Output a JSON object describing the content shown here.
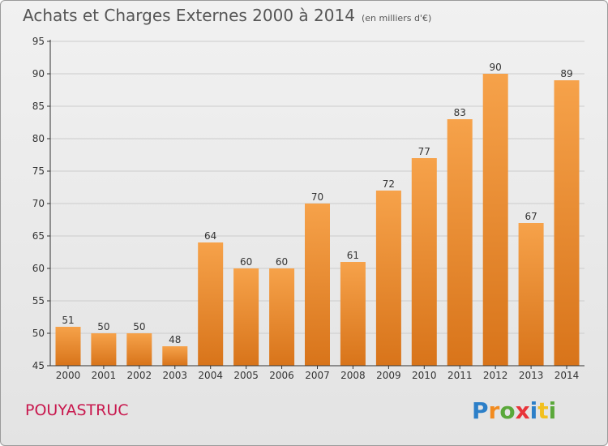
{
  "header": {
    "title": "Achats et Charges Externes 2000 à 2014",
    "subtitle": "(en milliers d'€)"
  },
  "footer": {
    "place": "POUYASTRUC",
    "logo_text": "Proxiti"
  },
  "colors": {
    "bar_light": "#f6a24a",
    "bar_dark": "#d8741a",
    "axis": "#333333",
    "grid": "#cccccc",
    "place_text": "#c8174d"
  },
  "chart_data": {
    "type": "bar",
    "title": "Achats et Charges Externes 2000 à 2014",
    "subtitle": "(en milliers d'€)",
    "categories": [
      "2000",
      "2001",
      "2002",
      "2003",
      "2004",
      "2005",
      "2006",
      "2007",
      "2008",
      "2009",
      "2010",
      "2011",
      "2012",
      "2013",
      "2014"
    ],
    "values": [
      51,
      50,
      50,
      48,
      64,
      60,
      60,
      70,
      61,
      72,
      77,
      83,
      90,
      67,
      89
    ],
    "ylim": [
      45,
      95
    ],
    "yticks": [
      45,
      50,
      55,
      60,
      65,
      70,
      75,
      80,
      85,
      90,
      95
    ],
    "grid": "horizontal",
    "data_labels": true
  }
}
